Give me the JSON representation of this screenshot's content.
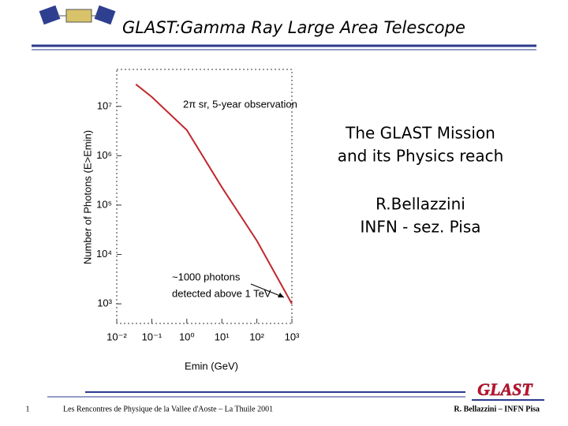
{
  "header": {
    "title": "GLAST:Gamma Ray Large Area Telescope"
  },
  "chart_data": {
    "type": "line",
    "x_label": "Emin (GeV)",
    "y_label": "Number of Photons (E>Emin)",
    "annotations": [
      "2π sr, 5-year observation",
      "~1000 photons",
      "detected above 1 TeV"
    ],
    "log_x": true,
    "log_y": true,
    "color": "#c0282d",
    "x": [
      0.035,
      0.1,
      1,
      10,
      100,
      1000
    ],
    "values": [
      28000000,
      15500000,
      3300000,
      230000,
      19000,
      1000
    ],
    "xlim": [
      0.01,
      1000
    ],
    "ylim": [
      400,
      56000000
    ],
    "xticks": [
      {
        "value": 0.01,
        "label": "10⁻²"
      },
      {
        "value": 0.1,
        "label": "10⁻¹"
      },
      {
        "value": 1,
        "label": "10⁰"
      },
      {
        "value": 10,
        "label": "10¹"
      },
      {
        "value": 100,
        "label": "10²"
      },
      {
        "value": 1000,
        "label": "10³"
      }
    ],
    "yticks": [
      {
        "value": 1000,
        "label": "10³"
      },
      {
        "value": 10000,
        "label": "10⁴"
      },
      {
        "value": 100000,
        "label": "10⁵"
      },
      {
        "value": 1000000,
        "label": "10⁶"
      },
      {
        "value": 10000000,
        "label": "10⁷"
      }
    ]
  },
  "text": {
    "mission": [
      "The GLAST Mission",
      "and its Physics reach"
    ],
    "author": [
      "R.Bellazzini",
      "INFN - sez. Pisa"
    ]
  },
  "footer": {
    "page": "1",
    "conference": "Les Rencontres de Physique de la Vallee d'Aoste – La Thuile 2001",
    "logo": "GLAST",
    "author": "R. Bellazzini – INFN Pisa"
  }
}
